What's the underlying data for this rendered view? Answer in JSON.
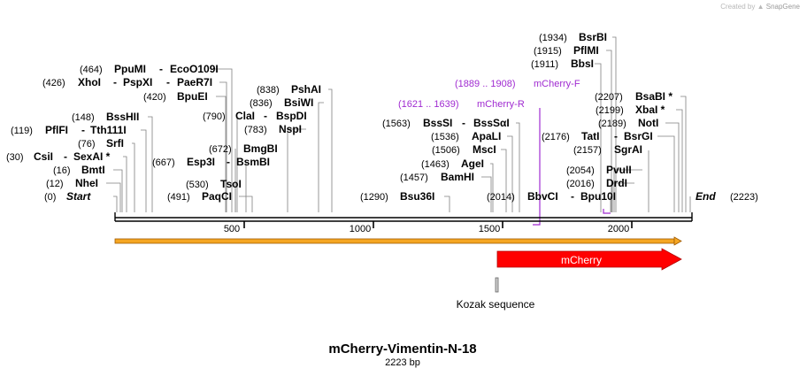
{
  "credit": {
    "prefix": "Created by",
    "brand": "SnapGene"
  },
  "map": {
    "title": "mCherry-Vimentin-N-18",
    "length_label": "2223 bp",
    "length_bp": 2223,
    "start_label": "Start",
    "start_pos": "(0)",
    "end_label": "End",
    "end_pos": "(2223)"
  },
  "ruler_ticks": [
    "500",
    "1000",
    "1500",
    "2000"
  ],
  "sites": [
    {
      "pos": "(12)",
      "name": "NheI"
    },
    {
      "pos": "(16)",
      "name": "BmtI"
    },
    {
      "pos": "(30)",
      "name": "CsiI",
      "extra": "SexAI *"
    },
    {
      "pos": "(76)",
      "name": "SrfI"
    },
    {
      "pos": "(119)",
      "name": "PflFI",
      "extra": "Tth111I"
    },
    {
      "pos": "(148)",
      "name": "BssHII"
    },
    {
      "pos": "(426)",
      "name": "XhoI",
      "extra": "PspXI",
      "extra2": "PaeR7I"
    },
    {
      "pos": "(464)",
      "name": "PpuMI",
      "extra": "EcoO109I"
    },
    {
      "pos": "(420)",
      "name": "BpuEI"
    },
    {
      "pos": "(790)",
      "name": "ClaI",
      "extra": "BspDI"
    },
    {
      "pos": "(672)",
      "name": "BmgBI"
    },
    {
      "pos": "(667)",
      "name": "Esp3I",
      "extra": "BsmBI"
    },
    {
      "pos": "(530)",
      "name": "TsoI"
    },
    {
      "pos": "(491)",
      "name": "PaqCI"
    },
    {
      "pos": "(838)",
      "name": "PshAI"
    },
    {
      "pos": "(836)",
      "name": "BsiWI"
    },
    {
      "pos": "(783)",
      "name": "NspI"
    },
    {
      "pos": "(1290)",
      "name": "Bsu36I"
    },
    {
      "pos": "(1563)",
      "name": "BssSI",
      "extra": "BssSαI"
    },
    {
      "pos": "(1536)",
      "name": "ApaLI"
    },
    {
      "pos": "(1506)",
      "name": "MscI"
    },
    {
      "pos": "(1463)",
      "name": "AgeI"
    },
    {
      "pos": "(1457)",
      "name": "BamHI"
    },
    {
      "pos": "(2014)",
      "name": "BbvCI",
      "extra": "Bpu10I"
    },
    {
      "pos": "(1934)",
      "name": "BsrBI"
    },
    {
      "pos": "(1915)",
      "name": "PflMI"
    },
    {
      "pos": "(1911)",
      "name": "BbsI"
    },
    {
      "pos": "(2207)",
      "name": "BsaBI *"
    },
    {
      "pos": "(2199)",
      "name": "XbaI *"
    },
    {
      "pos": "(2189)",
      "name": "NotI"
    },
    {
      "pos": "(2176)",
      "name": "TatI",
      "extra": "BsrGI"
    },
    {
      "pos": "(2157)",
      "name": "SgrAI"
    },
    {
      "pos": "(2054)",
      "name": "PvuII"
    },
    {
      "pos": "(2016)",
      "name": "DrdI"
    }
  ],
  "primers": [
    {
      "range": "(1889 .. 1908)",
      "name": "mCherry-F"
    },
    {
      "range": "(1621 .. 1639)",
      "name": "mCherry-R"
    }
  ],
  "features": {
    "mcherry_label": "mCherry",
    "kozak_label": "Kozak sequence"
  },
  "colors": {
    "backbone": "#000000",
    "leader": "#808080",
    "primer": "#a02bd1",
    "orange_bar": "#f5a623",
    "mcherry": "#ff0000",
    "kozak": "#999999"
  }
}
